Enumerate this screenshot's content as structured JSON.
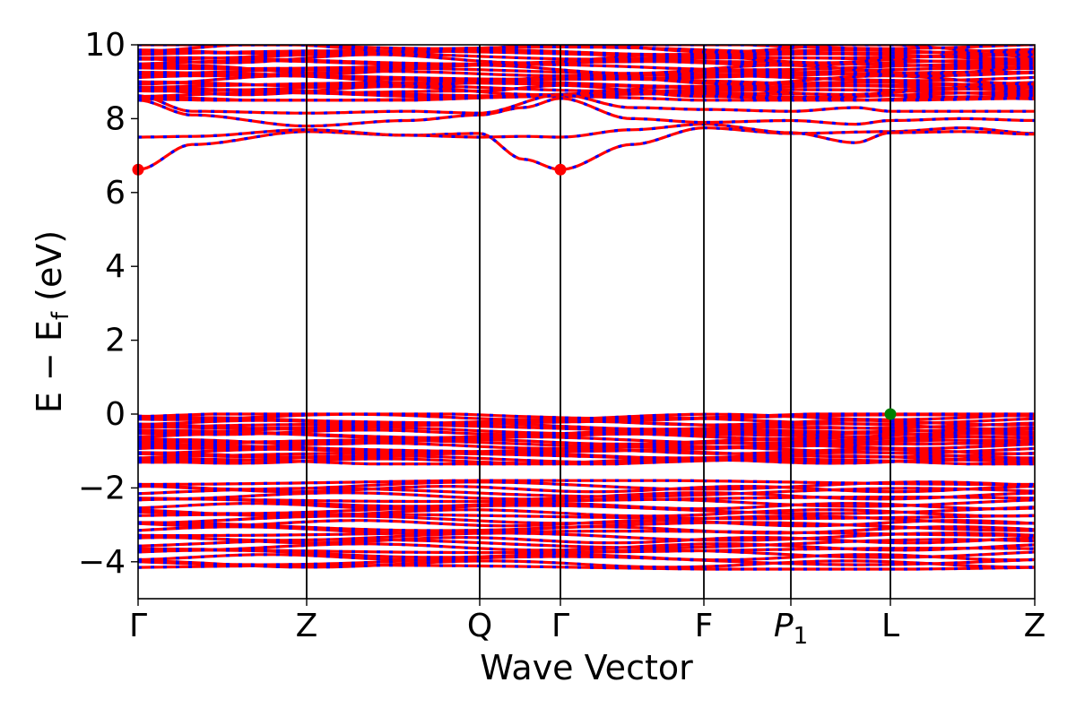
{
  "chart_data": {
    "type": "line",
    "title": "",
    "xlabel": "Wave Vector",
    "ylabel": "E − E",
    "ylabel_subscript": "f",
    "ylabel_unit": "(eV)",
    "ylim": [
      -5,
      10
    ],
    "yticks": [
      10,
      8,
      6,
      4,
      2,
      0,
      -2,
      -4
    ],
    "ytick_labels": [
      "10",
      "8",
      "6",
      "4",
      "2",
      "0",
      "−2",
      "−4"
    ],
    "high_symmetry_points": [
      {
        "label": "Γ",
        "x": 0.0
      },
      {
        "label": "Z",
        "x": 0.188
      },
      {
        "label": "Q",
        "x": 0.381
      },
      {
        "label": "Γ",
        "x": 0.471
      },
      {
        "label": "F",
        "x": 0.631
      },
      {
        "label": "P",
        "sub": "1",
        "x": 0.728
      },
      {
        "label": "L",
        "x": 0.839
      },
      {
        "label": "Z",
        "x": 1.0
      }
    ],
    "spin_colors": {
      "up": "#0000ff",
      "down": "#ff0000"
    },
    "band_groups": [
      {
        "name": "valence lower",
        "ymin": -4.2,
        "ymax": -1.8
      },
      {
        "name": "valence upper",
        "ymin": -1.35,
        "ymax": 0.0
      },
      {
        "name": "conduction upper",
        "ymin": 8.5,
        "ymax": 10.0
      }
    ],
    "conduction_bands": [
      {
        "x": [
          0,
          0.06,
          0.188,
          0.3,
          0.381,
          0.43,
          0.471,
          0.55,
          0.631,
          0.728,
          0.839,
          0.92,
          1.0
        ],
        "y": [
          6.62,
          7.3,
          7.65,
          7.55,
          7.6,
          6.9,
          6.62,
          7.3,
          7.75,
          7.6,
          7.65,
          7.75,
          7.6
        ]
      },
      {
        "x": [
          0,
          0.06,
          0.188,
          0.3,
          0.381,
          0.43,
          0.471,
          0.55,
          0.631,
          0.728,
          0.8,
          0.839,
          0.92,
          1.0
        ],
        "y": [
          7.5,
          7.52,
          7.7,
          7.55,
          7.5,
          7.52,
          7.5,
          7.7,
          7.85,
          7.62,
          7.35,
          7.62,
          7.65,
          7.58
        ]
      },
      {
        "x": [
          0,
          0.06,
          0.188,
          0.3,
          0.381,
          0.43,
          0.471,
          0.55,
          0.631,
          0.728,
          0.8,
          0.839,
          0.92,
          1.0
        ],
        "y": [
          8.5,
          8.1,
          7.8,
          7.95,
          8.1,
          8.3,
          8.55,
          8.0,
          7.9,
          7.95,
          7.85,
          7.95,
          8.0,
          7.95
        ]
      },
      {
        "x": [
          0,
          0.06,
          0.188,
          0.3,
          0.381,
          0.471,
          0.55,
          0.631,
          0.728,
          0.8,
          0.839,
          1.0
        ],
        "y": [
          8.62,
          8.2,
          8.15,
          8.2,
          8.15,
          8.65,
          8.3,
          8.25,
          8.2,
          8.3,
          8.2,
          8.2
        ]
      },
      {
        "x": [
          0,
          0.188,
          0.381,
          0.471,
          0.631,
          0.728,
          0.839,
          1.0
        ],
        "y": [
          8.85,
          8.7,
          8.75,
          8.9,
          8.6,
          8.55,
          8.5,
          8.55
        ]
      }
    ],
    "markers": [
      {
        "name": "CBM",
        "x": 0.0,
        "y": 6.62,
        "color": "#ff0000"
      },
      {
        "name": "CBM",
        "x": 0.471,
        "y": 6.62,
        "color": "#ff0000"
      },
      {
        "name": "VBM",
        "x": 0.839,
        "y": 0.0,
        "color": "#008000"
      }
    ]
  }
}
